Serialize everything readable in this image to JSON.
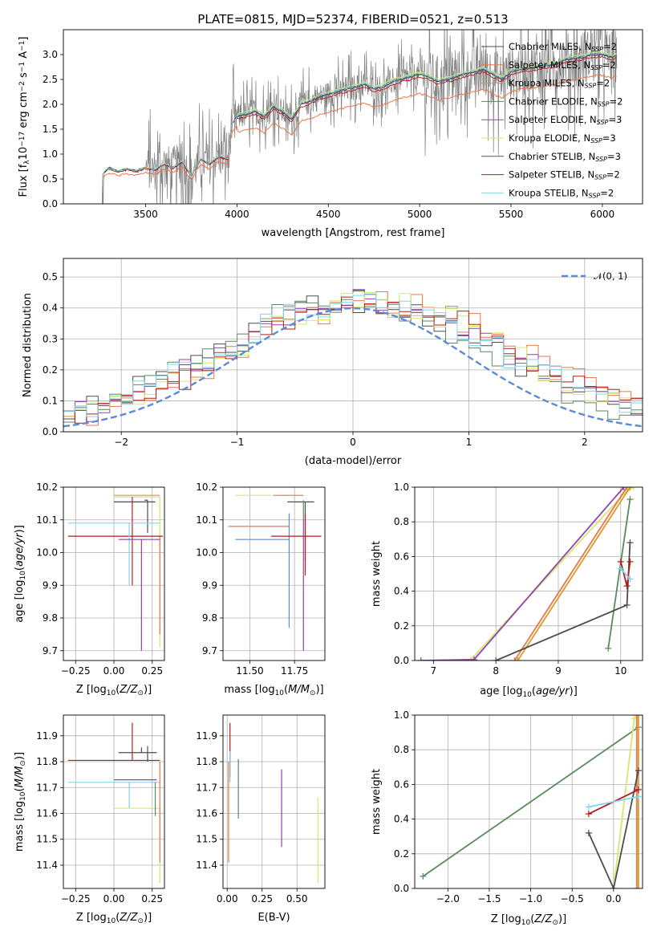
{
  "figure": {
    "title": "PLATE=0815, MJD=52374, FIBERID=0521, z=0.513"
  },
  "colors": {
    "chabrier_miles": "#4d4d4d",
    "salpeter_miles": "#e8774a",
    "kroupa_miles": "#d99a2b",
    "chabrier_elodie": "#5a8a5e",
    "salpeter_elodie": "#8e44ad",
    "kroupa_elodie": "#d6e86a",
    "chabrier_stelib": "#555555",
    "salpeter_stelib": "#b31b1b",
    "kroupa_stelib": "#7fd6e6",
    "data": "#808080",
    "normal": "#5b8bd6",
    "grid": "#b0b0b0"
  },
  "chart_data": [
    {
      "type": "line",
      "id": "spectrum",
      "title": "PLATE=0815, MJD=52374, FIBERID=0521, z=0.513",
      "xlabel": "wavelength [Angstrom, rest frame]",
      "ylabel": "Flux [f_λ 10^-17 erg cm^-2 s^-1 A^-1]",
      "xlim": [
        3050,
        6220
      ],
      "ylim": [
        0,
        3.5
      ],
      "xticks": [
        "3500",
        "4000",
        "4500",
        "5000",
        "5500",
        "6000"
      ],
      "yticks": [
        "0.0",
        "0.5",
        "1.0",
        "1.5",
        "2.0",
        "2.5",
        "3.0"
      ],
      "grid": false,
      "legend_position": "top-right",
      "legend": [
        {
          "label": "Chabrier MILES, N",
          "sub": "SSP",
          "suffix": "=2",
          "color_key": "chabrier_miles"
        },
        {
          "label": "Salpeter MILES, N",
          "sub": "SSP",
          "suffix": "=2",
          "color_key": "salpeter_miles"
        },
        {
          "label": "Kroupa MILES, N",
          "sub": "SSP",
          "suffix": "=2",
          "color_key": "kroupa_miles"
        },
        {
          "label": "Chabrier ELODIE, N",
          "sub": "SSP",
          "suffix": "=2",
          "color_key": "chabrier_elodie"
        },
        {
          "label": "Salpeter ELODIE, N",
          "sub": "SSP",
          "suffix": "=3",
          "color_key": "salpeter_elodie"
        },
        {
          "label": "Kroupa ELODIE, N",
          "sub": "SSP",
          "suffix": "=3",
          "color_key": "kroupa_elodie"
        },
        {
          "label": "Chabrier STELIB, N",
          "sub": "SSP",
          "suffix": "=3",
          "color_key": "chabrier_stelib"
        },
        {
          "label": "Salpeter STELIB, N",
          "sub": "SSP",
          "suffix": "=2",
          "color_key": "salpeter_stelib"
        },
        {
          "label": "Kroupa STELIB, N",
          "sub": "SSP",
          "suffix": "=2",
          "color_key": "kroupa_stelib"
        }
      ],
      "model_curve": {
        "x": [
          3270,
          3300,
          3350,
          3400,
          3450,
          3500,
          3550,
          3600,
          3650,
          3700,
          3750,
          3800,
          3850,
          3900,
          3950,
          3970,
          4000,
          4050,
          4100,
          4150,
          4200,
          4250,
          4300,
          4350,
          4400,
          4450,
          4500,
          4550,
          4600,
          4650,
          4700,
          4750,
          4800,
          4850,
          4900,
          4950,
          5000,
          5050,
          5100,
          5150,
          5200,
          5250,
          5300,
          5350,
          5400,
          5450,
          5500,
          5550,
          5600,
          5650,
          5700,
          5750,
          5800,
          5850,
          5900,
          5950,
          6000,
          6050,
          6080
        ],
        "y": [
          0.62,
          0.72,
          0.65,
          0.7,
          0.66,
          0.72,
          0.68,
          0.8,
          0.72,
          0.85,
          0.55,
          0.9,
          0.8,
          0.95,
          0.9,
          1.6,
          1.75,
          1.8,
          1.85,
          1.75,
          1.95,
          1.85,
          1.7,
          2.0,
          2.05,
          2.15,
          2.2,
          2.25,
          2.3,
          2.35,
          2.4,
          2.3,
          2.35,
          2.45,
          2.5,
          2.55,
          2.6,
          2.55,
          2.45,
          2.5,
          2.55,
          2.6,
          2.65,
          2.7,
          2.6,
          2.5,
          2.65,
          2.7,
          2.72,
          2.75,
          2.78,
          2.8,
          2.9,
          2.92,
          2.95,
          3.0,
          3.0,
          2.95,
          2.98
        ]
      }
    },
    {
      "type": "line",
      "id": "residuals",
      "xlabel": "(data-model)/error",
      "ylabel": "Normed distribution",
      "xlim": [
        -2.5,
        2.5
      ],
      "ylim": [
        0,
        0.56
      ],
      "xticks": [
        "−2",
        "−1",
        "0",
        "1",
        "2"
      ],
      "yticks": [
        "0.0",
        "0.1",
        "0.2",
        "0.3",
        "0.4",
        "0.5"
      ],
      "grid": true,
      "legend_position": "top-right",
      "legend": [
        {
          "label": "𝒩(0, 1)",
          "color_key": "normal"
        }
      ],
      "bin_width": 0.1,
      "series": [
        {
          "color_key": "chabrier_miles",
          "shift": 0.0
        },
        {
          "color_key": "salpeter_miles",
          "shift": 0.25
        },
        {
          "color_key": "chabrier_elodie",
          "shift": -0.05
        },
        {
          "color_key": "salpeter_elodie",
          "shift": 0.1
        },
        {
          "color_key": "kroupa_elodie",
          "shift": 0.15
        },
        {
          "color_key": "salpeter_stelib",
          "shift": 0.2
        },
        {
          "color_key": "kroupa_stelib",
          "shift": 0.05
        }
      ]
    },
    {
      "type": "scatter",
      "id": "z_age",
      "xlabel": "Z [log10(Z/Z⊙)]",
      "ylabel": "age [log10(age/yr)]",
      "xlim": [
        -0.33,
        0.33
      ],
      "ylim": [
        9.67,
        10.2
      ],
      "xticks": [
        "−0.25",
        "0.00",
        "0.25"
      ],
      "yticks": [
        "9.7",
        "9.8",
        "9.9",
        "10.0",
        "10.1",
        "10.2"
      ],
      "grid": true,
      "errorbars": [
        {
          "x": 0.3,
          "xerr": [
            0.3,
            0.0
          ],
          "y": 10.175,
          "yerr": [
            0.0,
            0.0
          ],
          "color_key": "kroupa_miles"
        },
        {
          "x": 0.3,
          "xerr": [
            0.3,
            0.0
          ],
          "y": 10.17,
          "yerr": [
            0.46,
            0.0
          ],
          "color_key": "kroupa_elodie"
        },
        {
          "x": 0.3,
          "xerr": [
            0.0,
            0.0
          ],
          "y": 10.05,
          "yerr": [
            0.3,
            0.0
          ],
          "color_key": "salpeter_miles"
        },
        {
          "x": 0.15,
          "xerr": [
            0.15,
            0.12
          ],
          "y": 10.155,
          "yerr": [
            0.0,
            0.0
          ],
          "color_key": "chabrier_miles"
        },
        {
          "x": 0.22,
          "xerr": [
            0.02,
            0.0
          ],
          "y": 10.16,
          "yerr": [
            0.1,
            0.0
          ],
          "color_key": "chabrier_miles"
        },
        {
          "x": 0.12,
          "xerr": [
            0.42,
            0.2
          ],
          "y": 10.05,
          "yerr": [
            0.15,
            0.12
          ],
          "color_key": "salpeter_stelib"
        },
        {
          "x": 0.1,
          "xerr": [
            0.4,
            0.2
          ],
          "y": 10.09,
          "yerr": [
            0.19,
            0.0
          ],
          "color_key": "kroupa_stelib"
        },
        {
          "x": 0.18,
          "xerr": [
            0.15,
            0.12
          ],
          "y": 10.04,
          "yerr": [
            0.34,
            0.0
          ],
          "color_key": "salpeter_elodie"
        }
      ]
    },
    {
      "type": "scatter",
      "id": "mass_age",
      "xlabel": "mass [log10(M/M⊙)]",
      "ylabel": "",
      "xlim": [
        11.35,
        11.92
      ],
      "ylim": [
        9.67,
        10.2
      ],
      "xticks": [
        "11.50",
        "11.75"
      ],
      "yticks": [
        "9.7",
        "9.8",
        "9.9",
        "10.0",
        "10.1",
        "10.2"
      ],
      "grid": true,
      "errorbars": [
        {
          "x": 11.62,
          "xerr": [
            0.2,
            0.0
          ],
          "y": 10.175,
          "yerr": [
            0.0,
            0.0
          ],
          "color_key": "kroupa_elodie"
        },
        {
          "x": 11.78,
          "xerr": [
            0.15,
            0.02
          ],
          "y": 10.175,
          "yerr": [
            0.0,
            0.0
          ],
          "color_key": "salpeter_miles"
        },
        {
          "x": 11.81,
          "xerr": [
            0.1,
            0.05
          ],
          "y": 10.155,
          "yerr": [
            0.18,
            0.0
          ],
          "color_key": "chabrier_miles"
        },
        {
          "x": 11.8,
          "xerr": [
            0.0,
            0.0
          ],
          "y": 10.16,
          "yerr": [
            0.06,
            0.0
          ],
          "color_key": "chabrier_elodie"
        },
        {
          "x": 11.72,
          "xerr": [
            0.34,
            0.0
          ],
          "y": 10.08,
          "yerr": [
            0.0,
            0.0
          ],
          "color_key": "salpeter_miles"
        },
        {
          "x": 11.72,
          "xerr": [
            0.0,
            0.0
          ],
          "y": 10.12,
          "yerr": [
            0.35,
            0.0
          ],
          "color_key": "normal"
        },
        {
          "x": 11.81,
          "xerr": [
            0.19,
            0.09
          ],
          "y": 10.05,
          "yerr": [
            0.12,
            0.07
          ],
          "color_key": "salpeter_stelib"
        },
        {
          "x": 11.8,
          "xerr": [
            0.0,
            0.0
          ],
          "y": 10.1,
          "yerr": [
            0.4,
            0.0
          ],
          "color_key": "salpeter_elodie"
        },
        {
          "x": 11.72,
          "xerr": [
            0.3,
            0.0
          ],
          "y": 10.04,
          "yerr": [
            0.0,
            0.0
          ],
          "color_key": "normal"
        }
      ]
    },
    {
      "type": "line",
      "id": "age_weight",
      "xlabel": "age [log10(age/yr)]",
      "ylabel": "mass weight",
      "xlim": [
        6.7,
        10.35
      ],
      "ylim": [
        0,
        1
      ],
      "xticks": [
        "7",
        "8",
        "9",
        "10"
      ],
      "yticks": [
        "0.0",
        "0.2",
        "0.4",
        "0.6",
        "0.8",
        "1.0"
      ],
      "grid": true,
      "series": [
        {
          "color_key": "kroupa_elodie",
          "x": [
            6.8,
            7.6,
            10.1,
            10.2
          ],
          "y": [
            0.0,
            0.005,
            0.98,
            1.0
          ]
        },
        {
          "color_key": "salpeter_elodie",
          "x": [
            6.8,
            7.65,
            10.05
          ],
          "y": [
            0.0,
            0.005,
            1.0
          ]
        },
        {
          "color_key": "salpeter_miles",
          "x": [
            8.3,
            10.1
          ],
          "y": [
            0.0,
            1.0
          ]
        },
        {
          "color_key": "kroupa_miles",
          "x": [
            8.35,
            10.15
          ],
          "y": [
            0.0,
            1.0
          ]
        },
        {
          "color_key": "chabrier_elodie",
          "x": [
            9.8,
            10.15
          ],
          "y": [
            0.07,
            0.93
          ]
        },
        {
          "color_key": "chabrier_miles",
          "x": [
            8.0,
            10.1,
            10.15
          ],
          "y": [
            0.0,
            0.32,
            0.68
          ]
        },
        {
          "color_key": "salpeter_stelib",
          "x": [
            10.0,
            10.1,
            10.15
          ],
          "y": [
            0.57,
            0.43,
            0.57
          ]
        },
        {
          "color_key": "kroupa_stelib",
          "x": [
            10.0,
            10.15
          ],
          "y": [
            0.53,
            0.47
          ]
        }
      ]
    },
    {
      "type": "scatter",
      "id": "z_mass",
      "xlabel": "Z [log10(Z/Z⊙)]",
      "ylabel": "mass [log10(M/M⊙)]",
      "xlim": [
        -0.33,
        0.33
      ],
      "ylim": [
        11.31,
        11.98
      ],
      "xticks": [
        "−0.25",
        "0.00",
        "0.25"
      ],
      "yticks": [
        "11.4",
        "11.5",
        "11.6",
        "11.7",
        "11.8",
        "11.9"
      ],
      "grid": true,
      "errorbars": [
        {
          "x": 0.12,
          "xerr": [
            0.42,
            0.18
          ],
          "y": 11.805,
          "yerr": [
            0.0,
            0.145
          ],
          "color_key": "salpeter_stelib"
        },
        {
          "x": 0.1,
          "xerr": [
            0.4,
            0.2
          ],
          "y": 11.72,
          "yerr": [
            0.1,
            0.0
          ],
          "color_key": "kroupa_stelib"
        },
        {
          "x": 0.18,
          "xerr": [
            0.15,
            0.1
          ],
          "y": 11.835,
          "yerr": [
            0.0,
            0.02
          ],
          "color_key": "chabrier_miles"
        },
        {
          "x": 0.22,
          "xerr": [
            0.0,
            0.0
          ],
          "y": 11.8,
          "yerr": [
            0.0,
            0.06
          ],
          "color_key": "chabrier_miles"
        },
        {
          "x": 0.15,
          "xerr": [
            0.15,
            0.13
          ],
          "y": 11.73,
          "yerr": [
            0.0,
            0.0
          ],
          "color_key": "salpeter_elodie"
        },
        {
          "x": 0.3,
          "xerr": [
            0.3,
            0.0
          ],
          "y": 11.62,
          "yerr": [
            0.29,
            0.0
          ],
          "color_key": "kroupa_elodie"
        },
        {
          "x": 0.27,
          "xerr": [
            0.0,
            0.0
          ],
          "y": 11.72,
          "yerr": [
            0.13,
            0.0
          ],
          "color_key": "chabrier_elodie"
        },
        {
          "x": 0.3,
          "xerr": [
            0.0,
            0.0
          ],
          "y": 11.8,
          "yerr": [
            0.39,
            0.0
          ],
          "color_key": "salpeter_miles"
        }
      ]
    },
    {
      "type": "scatter",
      "id": "ebv_mass",
      "xlabel": "E(B-V)",
      "ylabel": "",
      "xlim": [
        -0.03,
        0.7
      ],
      "ylim": [
        11.31,
        11.98
      ],
      "xticks": [
        "0.00",
        "0.25",
        "0.50"
      ],
      "yticks": [
        "11.4",
        "11.5",
        "11.6",
        "11.7",
        "11.8",
        "11.9"
      ],
      "grid": true,
      "errorbars": [
        {
          "x": 0.01,
          "xerr": [
            0.0,
            0.0
          ],
          "y": 11.8,
          "yerr": [
            0.39,
            0.0
          ],
          "color_key": "salpeter_miles"
        },
        {
          "x": 0.02,
          "xerr": [
            0.0,
            0.0
          ],
          "y": 11.89,
          "yerr": [
            0.15,
            0.06
          ],
          "color_key": "salpeter_stelib"
        },
        {
          "x": 0.02,
          "xerr": [
            0.0,
            0.0
          ],
          "y": 11.8,
          "yerr": [
            0.08,
            0.04
          ],
          "color_key": "kroupa_stelib"
        },
        {
          "x": 0.08,
          "xerr": [
            0.0,
            0.0
          ],
          "y": 11.7,
          "yerr": [
            0.12,
            0.11
          ],
          "color_key": "chabrier_elodie"
        },
        {
          "x": 0.39,
          "xerr": [
            0.0,
            0.0
          ],
          "y": 11.62,
          "yerr": [
            0.15,
            0.15
          ],
          "color_key": "salpeter_elodie"
        },
        {
          "x": 0.65,
          "xerr": [
            0.0,
            0.0
          ],
          "y": 11.5,
          "yerr": [
            0.17,
            0.16
          ],
          "color_key": "kroupa_elodie"
        }
      ]
    },
    {
      "type": "line",
      "id": "z_weight",
      "xlabel": "Z [log10(Z/Z⊙)]",
      "ylabel": "mass weight",
      "xlim": [
        -2.4,
        0.35
      ],
      "ylim": [
        0,
        1
      ],
      "xticks": [
        "−2.0",
        "−1.5",
        "−1.0",
        "−0.5",
        "0.0"
      ],
      "yticks": [
        "0.0",
        "0.2",
        "0.4",
        "0.6",
        "0.8",
        "1.0"
      ],
      "grid": true,
      "series": [
        {
          "color_key": "chabrier_elodie",
          "x": [
            -2.3,
            0.3
          ],
          "y": [
            0.07,
            0.93
          ]
        },
        {
          "color_key": "kroupa_elodie",
          "x": [
            0.0,
            0.25,
            0.3
          ],
          "y": [
            0.0,
            0.98,
            1.0
          ]
        },
        {
          "color_key": "kroupa_miles",
          "x": [
            0.3,
            0.3
          ],
          "y": [
            0.0,
            1.0
          ]
        },
        {
          "color_key": "salpeter_miles",
          "x": [
            0.28,
            0.28
          ],
          "y": [
            0.0,
            1.0
          ]
        },
        {
          "color_key": "chabrier_miles",
          "x": [
            -0.3,
            0.0,
            0.3
          ],
          "y": [
            0.32,
            0.0,
            0.68
          ]
        },
        {
          "color_key": "salpeter_stelib",
          "x": [
            -0.3,
            0.3
          ],
          "y": [
            0.43,
            0.57
          ]
        },
        {
          "color_key": "kroupa_stelib",
          "x": [
            -0.3,
            0.3
          ],
          "y": [
            0.47,
            0.53
          ]
        }
      ]
    }
  ]
}
